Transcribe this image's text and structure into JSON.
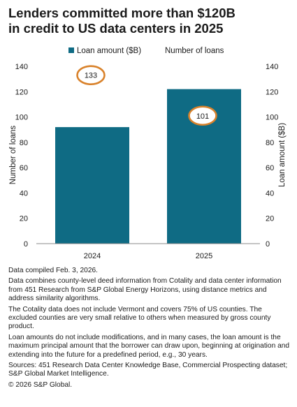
{
  "title_lines": [
    "Lenders committed more than $120B",
    "in credit to US data centers in 2025"
  ],
  "chart_data": {
    "type": "bar",
    "categories": [
      "2024",
      "2025"
    ],
    "series": [
      {
        "name": "Loan amount ($B)",
        "values": [
          92,
          122
        ],
        "color": "#0f6b84",
        "axis": "right"
      },
      {
        "name": "Number of loans",
        "values": [
          133,
          101
        ],
        "axis": "left",
        "marker": "circle-label",
        "marker_color": "#d9822b"
      }
    ],
    "ylabel_left": "Number of loans",
    "ylabel_right": "Loan amount ($B)",
    "ylim": [
      0,
      140
    ],
    "yticks": [
      0,
      20,
      40,
      60,
      80,
      100,
      120,
      140
    ],
    "legend_position": "top",
    "grid": false
  },
  "notes": [
    "Data compiled Feb. 3, 2026.",
    "Data combines county-level deed information from Cotality and data center information from 451 Research from S&P Global Energy Horizons, using distance metrics and address similarity algorithms.",
    "The Cotality data does not include Vermont and covers 75% of US counties. The excluded counties are very small relative to others when measured by gross county product.",
    "Loan amounts do not include modifications, and in many cases, the loan amount is the maximum principal amount that the borrower can draw upon, beginning at origination and extending into the future for a predefined period, e.g., 30 years.",
    "Sources: 451 Research Data Center Knowledge Base, Commercial Prospecting dataset; S&P Global Market Intelligence.",
    "© 2026 S&P Global."
  ]
}
